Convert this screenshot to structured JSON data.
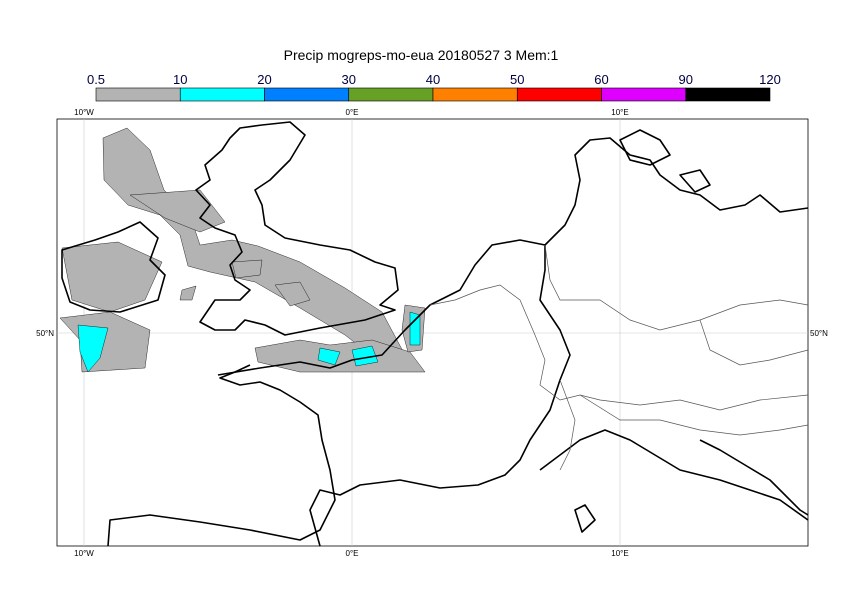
{
  "title": "Precip mogreps-mo-eua 20180527 3 Mem:1",
  "legend": {
    "levels": [
      "0.5",
      "10",
      "20",
      "30",
      "40",
      "50",
      "60",
      "90",
      "120"
    ],
    "colors": [
      "#b3b3b3",
      "#00ffff",
      "#0080ff",
      "#66a126",
      "#ff8000",
      "#ff0000",
      "#dd00ff",
      "#000000"
    ]
  },
  "axes": {
    "lon_labels": [
      "10°W",
      "0°E",
      "10°E"
    ],
    "lat_labels": [
      "50°N",
      "50°N"
    ]
  },
  "colors": {
    "precip_light": "#b3b3b3",
    "precip_cyan": "#00ffff",
    "coast": "#000000",
    "border": "#555555",
    "grid": "#cccccc"
  }
}
